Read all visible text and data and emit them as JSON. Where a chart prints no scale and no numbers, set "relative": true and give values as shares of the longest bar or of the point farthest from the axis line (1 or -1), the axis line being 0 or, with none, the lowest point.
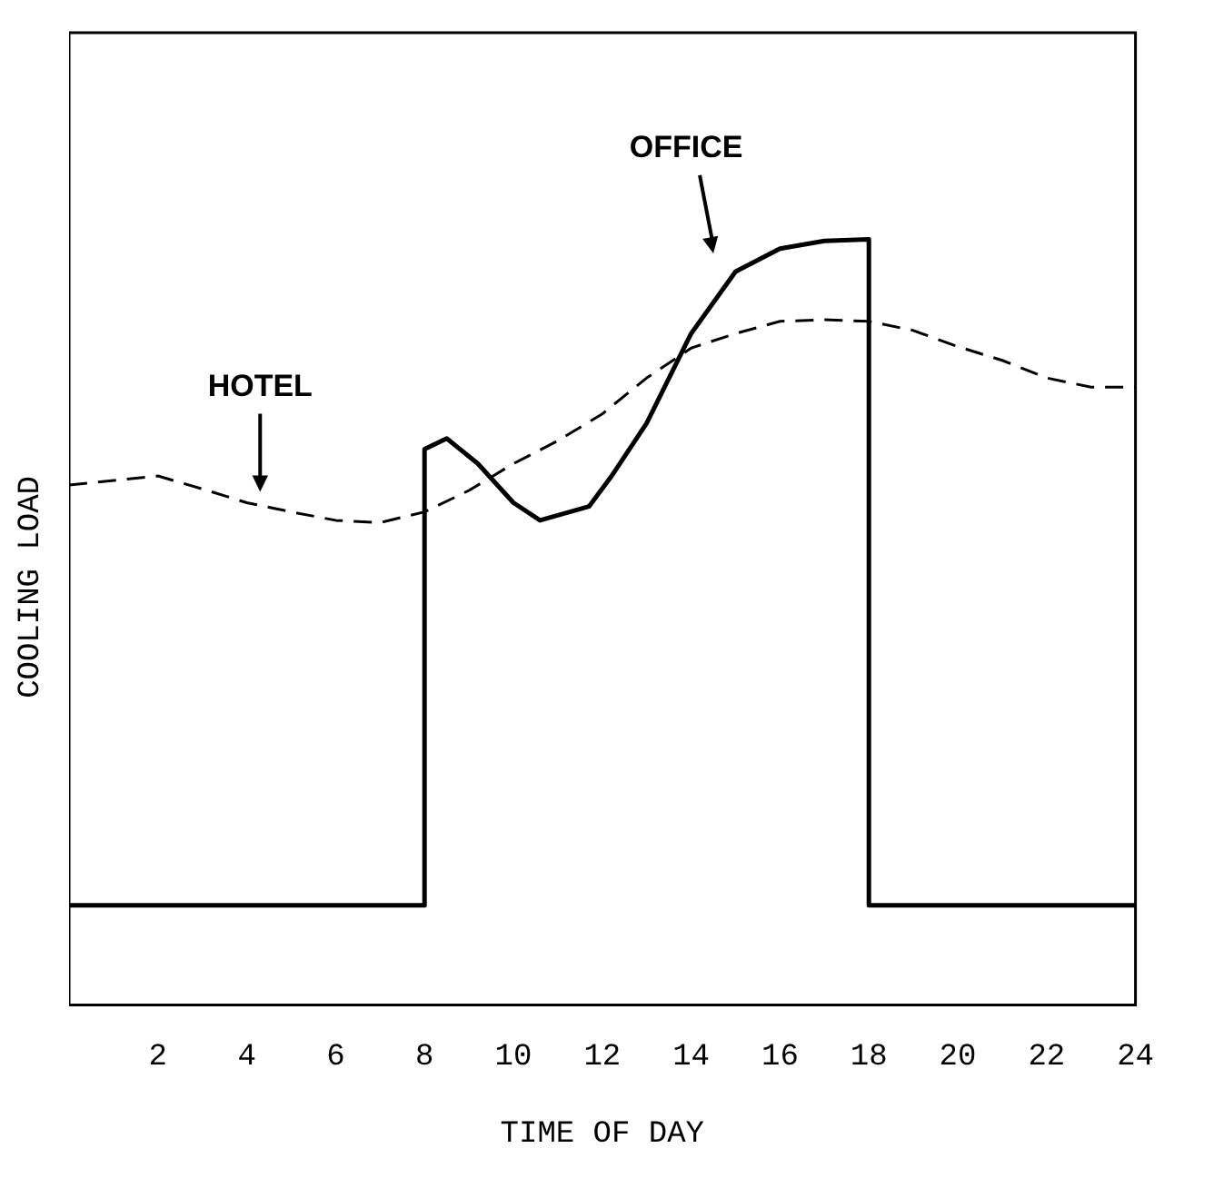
{
  "chart_data": {
    "type": "line",
    "relative": true,
    "xlabel": "TIME OF DAY",
    "ylabel": "COOLING LOAD",
    "xlim": [
      0,
      24
    ],
    "xticks": [
      2,
      4,
      6,
      8,
      10,
      12,
      14,
      16,
      18,
      20,
      22,
      24
    ],
    "grid": false,
    "legend": false,
    "marker": "none",
    "series": [
      {
        "name": "OFFICE",
        "color": "#000000",
        "line_style": "solid",
        "x": [
          0,
          8,
          8,
          8.5,
          9.2,
          10,
          10.6,
          11.7,
          12.2,
          13,
          14,
          15,
          16,
          17,
          18,
          18,
          24
        ],
        "values": [
          0.13,
          0.13,
          0.726,
          0.74,
          0.707,
          0.656,
          0.633,
          0.651,
          0.69,
          0.76,
          0.877,
          0.958,
          0.988,
          0.998,
          1,
          0.13,
          0.13
        ]
      },
      {
        "name": "HOTEL",
        "color": "#000000",
        "line_style": "dashed",
        "x": [
          0,
          2,
          3,
          4,
          5,
          6,
          7,
          8,
          9,
          10,
          11,
          12,
          13,
          14,
          15,
          16,
          17,
          18,
          19,
          20,
          21,
          22,
          23,
          24
        ],
        "values": [
          0.679,
          0.691,
          0.674,
          0.656,
          0.644,
          0.633,
          0.63,
          0.644,
          0.672,
          0.707,
          0.737,
          0.772,
          0.819,
          0.858,
          0.877,
          0.893,
          0.895,
          0.893,
          0.881,
          0.86,
          0.842,
          0.819,
          0.807,
          0.807
        ]
      }
    ]
  }
}
